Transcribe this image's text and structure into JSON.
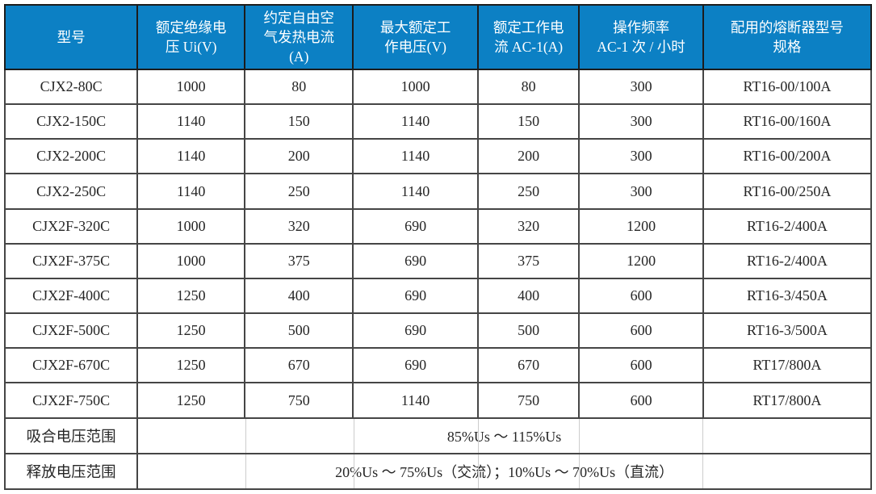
{
  "table": {
    "title_semantic": "contactor-specification-table",
    "colors": {
      "header_bg": "#0c80c4",
      "header_text": "#ffffff",
      "body_text": "#262626",
      "grid_line": "#454545"
    },
    "header": [
      "型号",
      "额定绝缘电\n压 Ui(V)",
      "约定自由空\n气发热电流\n(A)",
      "最大额定工\n作电压(V)",
      "额定工作电\n流 AC-1(A)",
      "操作频率\nAC-1 次 / 小时",
      "配用的熔断器型号\n规格"
    ],
    "rows": [
      [
        "CJX2-80C",
        "1000",
        "80",
        "1000",
        "80",
        "300",
        "RT16-00/100A"
      ],
      [
        "CJX2-150C",
        "1140",
        "150",
        "1140",
        "150",
        "300",
        "RT16-00/160A"
      ],
      [
        "CJX2-200C",
        "1140",
        "200",
        "1140",
        "200",
        "300",
        "RT16-00/200A"
      ],
      [
        "CJX2-250C",
        "1140",
        "250",
        "1140",
        "250",
        "300",
        "RT16-00/250A"
      ],
      [
        "CJX2F-320C",
        "1000",
        "320",
        "690",
        "320",
        "1200",
        "RT16-2/400A"
      ],
      [
        "CJX2F-375C",
        "1000",
        "375",
        "690",
        "375",
        "1200",
        "RT16-2/400A"
      ],
      [
        "CJX2F-400C",
        "1250",
        "400",
        "690",
        "400",
        "600",
        "RT16-3/450A"
      ],
      [
        "CJX2F-500C",
        "1250",
        "500",
        "690",
        "500",
        "600",
        "RT16-3/500A"
      ],
      [
        "CJX2F-670C",
        "1250",
        "670",
        "690",
        "670",
        "600",
        "RT17/800A"
      ],
      [
        "CJX2F-750C",
        "1250",
        "750",
        "1140",
        "750",
        "600",
        "RT17/800A"
      ]
    ],
    "footer_rows": [
      {
        "label": "吸合电压范围",
        "value": "85%Us ～ 115%Us"
      },
      {
        "label": "释放电压范围",
        "value": "20%Us ～ 75%Us（交流）；10%Us ～ 70%Us（直流）"
      }
    ]
  }
}
